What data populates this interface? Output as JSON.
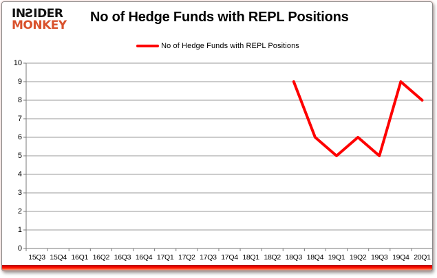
{
  "logo": {
    "line1": "INƧIDER",
    "line2": "MONKEY"
  },
  "header": {
    "title": "No of Hedge Funds with REPL Positions"
  },
  "legend": {
    "label": "No of Hedge Funds with REPL Positions"
  },
  "chart_data": {
    "type": "line",
    "title": "No of Hedge Funds with REPL Positions",
    "categories": [
      "15Q3",
      "15Q4",
      "16Q1",
      "16Q2",
      "16Q3",
      "16Q4",
      "17Q1",
      "17Q2",
      "17Q3",
      "17Q4",
      "18Q1",
      "18Q2",
      "18Q3",
      "18Q4",
      "19Q1",
      "19Q2",
      "19Q3",
      "19Q4",
      "20Q1"
    ],
    "series": [
      {
        "name": "No of Hedge Funds with REPL Positions",
        "color": "#fe0000",
        "values": [
          null,
          null,
          null,
          null,
          null,
          null,
          null,
          null,
          null,
          null,
          null,
          null,
          9,
          6,
          5,
          6,
          5,
          9,
          8
        ]
      }
    ],
    "xlabel": "",
    "ylabel": "",
    "ylim": [
      0,
      10
    ],
    "yticks": [
      0,
      1,
      2,
      3,
      4,
      5,
      6,
      7,
      8,
      9,
      10
    ],
    "grid": true,
    "legend_position": "top-center"
  },
  "colors": {
    "line": "#fe0000",
    "gridline": "#9a9a9a",
    "axis": "#787878",
    "logo_red": "#d9512c",
    "accent_bar": "#ff1c00",
    "card_border": "#8a8a8a"
  }
}
